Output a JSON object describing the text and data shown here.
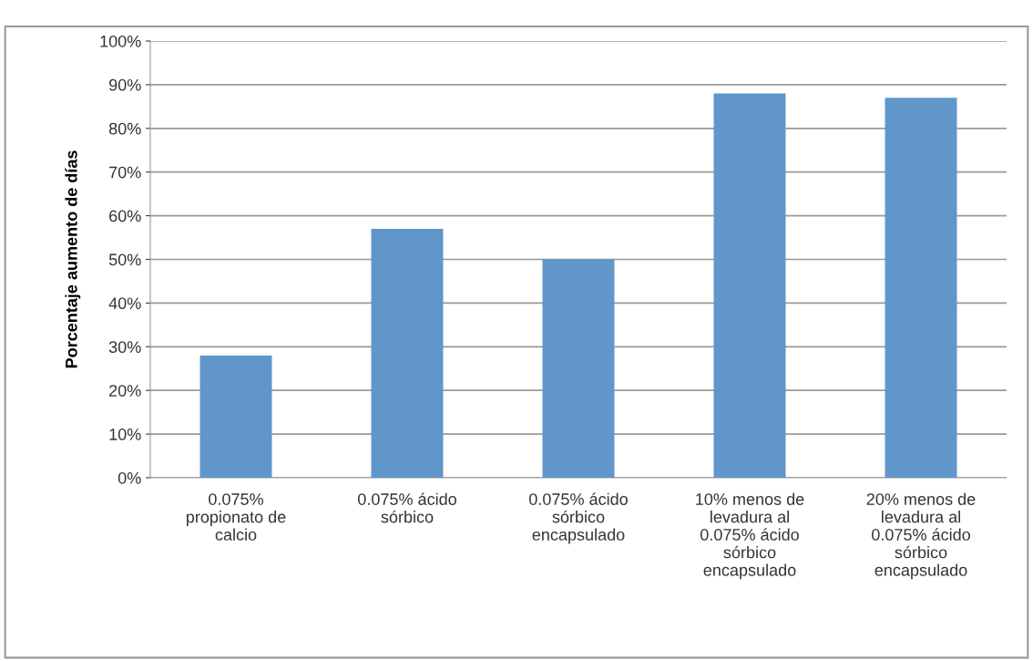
{
  "chart_data": {
    "type": "bar",
    "ylabel": "Porcentaje aumento de días",
    "categories": [
      "0.075%\npropionato de\ncalcio",
      "0.075% ácido\nsórbico",
      "0.075% ácido\nsórbico\nencapsulado",
      "10% menos de\nlevadura al\n0.075% ácido\nsórbico\nencapsulado",
      "20% menos de\nlevadura al\n0.075% ácido\nsórbico\nencapsulado"
    ],
    "values": [
      28,
      57,
      50,
      88,
      87
    ],
    "color": "#6096c9",
    "ylim": [
      0,
      100
    ],
    "yticks": [
      {
        "value": 0,
        "label": "0%"
      },
      {
        "value": 10,
        "label": "10%"
      },
      {
        "value": 20,
        "label": "20%"
      },
      {
        "value": 30,
        "label": "30%"
      },
      {
        "value": 40,
        "label": "40%"
      },
      {
        "value": 50,
        "label": "50%"
      },
      {
        "value": 60,
        "label": "60%"
      },
      {
        "value": 70,
        "label": "70%"
      },
      {
        "value": 80,
        "label": "80%"
      },
      {
        "value": 90,
        "label": "90%"
      },
      {
        "value": 100,
        "label": "100%"
      }
    ],
    "grid": "y"
  }
}
